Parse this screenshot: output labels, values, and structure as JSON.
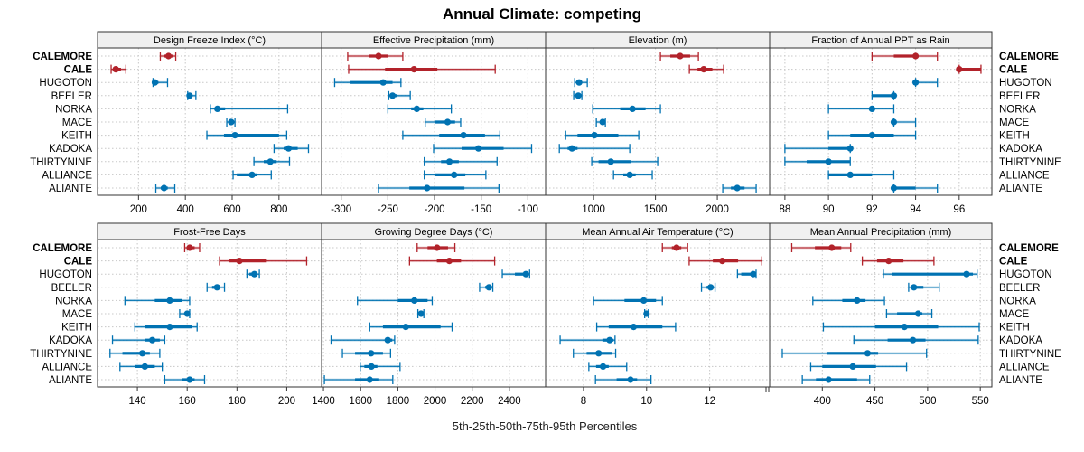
{
  "chart_data": {
    "type": "dotplot-percentile-intervals",
    "title": "Annual Climate: competing",
    "xlabel": "5th-25th-50th-75th-95th Percentiles",
    "legend": "none",
    "grid": true,
    "highlight_color": "#B2222A",
    "default_color": "#0072B2",
    "stations": [
      "CALEMORE",
      "CALE",
      "HUGOTON",
      "BEELER",
      "NORKA",
      "MACE",
      "KEITH",
      "KADOKA",
      "THIRTYNINE",
      "ALLIANCE",
      "ALIANTE"
    ],
    "highlighted": [
      "CALEMORE",
      "CALE"
    ],
    "percentiles": [
      "p5",
      "p25",
      "p50",
      "p75",
      "p95"
    ],
    "panels": [
      {
        "title": "Design Freeze Index (°C)",
        "xlim": [
          25,
          982
        ],
        "ticks": [
          200,
          400,
          600,
          800
        ],
        "values": [
          [
            293,
            310,
            328,
            345,
            359
          ],
          [
            83,
            95,
            103,
            125,
            146
          ],
          [
            262,
            265,
            270,
            285,
            324
          ],
          [
            410,
            412,
            418,
            425,
            445
          ],
          [
            507,
            525,
            537,
            570,
            837
          ],
          [
            577,
            585,
            596,
            605,
            612
          ],
          [
            492,
            565,
            612,
            800,
            833
          ],
          [
            779,
            820,
            841,
            880,
            926
          ],
          [
            693,
            735,
            763,
            790,
            845
          ],
          [
            604,
            620,
            685,
            705,
            767
          ],
          [
            274,
            295,
            309,
            325,
            355
          ]
        ]
      },
      {
        "title": "Effective Precipitation (mm)",
        "xlim": [
          -321,
          -81
        ],
        "ticks": [
          -300,
          -250,
          -200,
          -150,
          -100
        ],
        "values": [
          [
            -293,
            -270,
            -260,
            -250,
            -234
          ],
          [
            -292,
            -253,
            -222,
            -197,
            -135
          ],
          [
            -307,
            -290,
            -255,
            -245,
            -236
          ],
          [
            -249,
            -247,
            -245,
            -240,
            -226
          ],
          [
            -250,
            -225,
            -219,
            -212,
            -182
          ],
          [
            -210,
            -200,
            -186,
            -178,
            -172
          ],
          [
            -234,
            -195,
            -169,
            -146,
            -130
          ],
          [
            -201,
            -171,
            -153,
            -126,
            -96
          ],
          [
            -211,
            -193,
            -184,
            -174,
            -133
          ],
          [
            -211,
            -200,
            -179,
            -167,
            -145
          ],
          [
            -260,
            -227,
            -208,
            -168,
            -131
          ]
        ]
      },
      {
        "title": "Elevation (m)",
        "xlim": [
          612,
          2423
        ],
        "ticks": [
          1000,
          1500,
          2000
        ],
        "values": [
          [
            1540,
            1620,
            1700,
            1780,
            1847
          ],
          [
            1774,
            1840,
            1890,
            1960,
            2051
          ],
          [
            847,
            870,
            883,
            905,
            949
          ],
          [
            839,
            860,
            876,
            885,
            905
          ],
          [
            993,
            1215,
            1314,
            1420,
            1540
          ],
          [
            1022,
            1050,
            1073,
            1085,
            1095
          ],
          [
            774,
            870,
            1007,
            1200,
            1365
          ],
          [
            723,
            790,
            825,
            870,
            1292
          ],
          [
            985,
            1040,
            1139,
            1300,
            1518
          ],
          [
            1161,
            1240,
            1292,
            1340,
            1474
          ],
          [
            2044,
            2110,
            2161,
            2220,
            2314
          ]
        ]
      },
      {
        "title": "Fraction of Annual PPT as Rain",
        "xlim": [
          87.3,
          97.5
        ],
        "ticks": [
          88,
          90,
          92,
          94,
          96
        ],
        "values": [
          [
            92,
            93,
            94,
            94,
            95
          ],
          [
            96,
            96,
            96,
            97,
            97
          ],
          [
            94,
            94,
            94,
            94,
            95
          ],
          [
            92,
            92,
            93,
            93,
            93
          ],
          [
            90,
            92,
            92,
            92,
            93
          ],
          [
            93,
            93,
            93,
            93,
            94
          ],
          [
            90,
            91,
            92,
            93,
            94
          ],
          [
            88,
            90,
            91,
            91,
            91
          ],
          [
            88,
            89,
            90,
            91,
            91
          ],
          [
            90,
            90,
            91,
            92,
            93
          ],
          [
            93,
            93,
            93,
            94,
            95
          ]
        ]
      },
      {
        "title": "Frost-Free Days",
        "xlim": [
          124,
          214
        ],
        "ticks": [
          140,
          160,
          180,
          200
        ],
        "values": [
          [
            159,
            160,
            161,
            163,
            165
          ],
          [
            173,
            177,
            181,
            192,
            208
          ],
          [
            184,
            185,
            187,
            188,
            189
          ],
          [
            168,
            170,
            172,
            173,
            175
          ],
          [
            135,
            147,
            153,
            158,
            161
          ],
          [
            157,
            159,
            160,
            161,
            161
          ],
          [
            139,
            143,
            153,
            162,
            164
          ],
          [
            130,
            143,
            146,
            149,
            151
          ],
          [
            129,
            134,
            142,
            145,
            149
          ],
          [
            133,
            139,
            143,
            147,
            150
          ],
          [
            151,
            158,
            161,
            163,
            167
          ]
        ]
      },
      {
        "title": "Growing Degree Days (°C)",
        "xlim": [
          1390,
          2595
        ],
        "ticks": [
          1400,
          1600,
          1800,
          2000,
          2200,
          2400
        ],
        "values": [
          [
            1904,
            1960,
            2011,
            2070,
            2107
          ],
          [
            1863,
            2010,
            2077,
            2140,
            2321
          ],
          [
            2362,
            2430,
            2489,
            2500,
            2509
          ],
          [
            2240,
            2270,
            2290,
            2300,
            2311
          ],
          [
            1583,
            1800,
            1889,
            1960,
            1985
          ],
          [
            1908,
            1915,
            1925,
            1935,
            1940
          ],
          [
            1649,
            1720,
            1843,
            2030,
            2092
          ],
          [
            1441,
            1730,
            1746,
            1770,
            1783
          ],
          [
            1502,
            1570,
            1656,
            1720,
            1761
          ],
          [
            1598,
            1620,
            1658,
            1690,
            1812
          ],
          [
            1405,
            1570,
            1649,
            1700,
            1773
          ]
        ]
      },
      {
        "title": "Mean Annual Air Temperature (°C)",
        "xlim": [
          6.8,
          13.9
        ],
        "ticks": [
          8,
          10,
          12
        ],
        "values": [
          [
            10.5,
            10.8,
            10.95,
            11.1,
            11.3
          ],
          [
            11.35,
            12.1,
            12.4,
            12.9,
            13.65
          ],
          [
            12.88,
            13.0,
            13.38,
            13.4,
            13.47
          ],
          [
            11.74,
            11.9,
            12.03,
            12.1,
            12.17
          ],
          [
            8.32,
            9.3,
            9.91,
            10.3,
            10.5
          ],
          [
            9.94,
            9.95,
            10.0,
            10.05,
            10.06
          ],
          [
            8.42,
            8.8,
            9.59,
            10.5,
            10.92
          ],
          [
            7.26,
            8.6,
            8.83,
            8.95,
            9.0
          ],
          [
            7.68,
            8.1,
            8.48,
            8.9,
            9.02
          ],
          [
            8.17,
            8.4,
            8.62,
            8.8,
            9.37
          ],
          [
            8.38,
            9.05,
            9.49,
            9.7,
            10.14
          ]
        ]
      },
      {
        "title": "Mean Annual Precipitation (mm)",
        "xlim": [
          350,
          561
        ],
        "ticks": [
          400,
          450,
          500,
          550
        ],
        "values": [
          [
            371,
            393,
            409,
            418,
            427
          ],
          [
            438,
            452,
            463,
            477,
            506
          ],
          [
            458,
            466,
            537,
            543,
            547
          ],
          [
            482,
            485,
            487,
            496,
            511
          ],
          [
            391,
            419,
            433,
            441,
            459
          ],
          [
            461,
            471,
            491,
            495,
            504
          ],
          [
            401,
            450,
            478,
            510,
            549
          ],
          [
            430,
            462,
            486,
            498,
            548
          ],
          [
            362,
            404,
            443,
            453,
            499
          ],
          [
            389,
            400,
            429,
            451,
            480
          ],
          [
            381,
            394,
            406,
            433,
            445
          ]
        ]
      }
    ]
  }
}
